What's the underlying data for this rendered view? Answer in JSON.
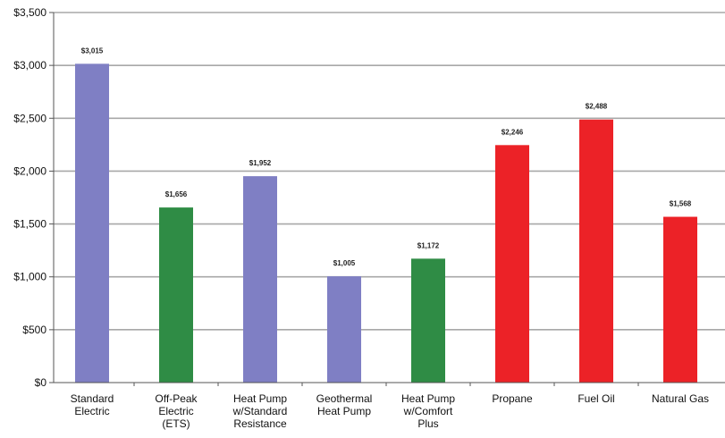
{
  "chart_data": {
    "type": "bar",
    "title": "",
    "xlabel": "",
    "ylabel": "",
    "ylim": [
      0,
      3500
    ],
    "yticks": [
      0,
      500,
      1000,
      1500,
      2000,
      2500,
      3000,
      3500
    ],
    "ytick_labels": [
      "$0",
      "$500",
      "$1,000",
      "$1,500",
      "$2,000",
      "$2,500",
      "$3,000",
      "$3,500"
    ],
    "grid": true,
    "legend": "none",
    "categories": [
      [
        "Standard",
        "Electric"
      ],
      [
        "Off-Peak",
        "Electric",
        "(ETS)"
      ],
      [
        "Heat Pump",
        "w/Standard",
        "Resistance"
      ],
      [
        "Geothermal",
        "Heat Pump"
      ],
      [
        "Heat Pump",
        "w/Comfort",
        "Plus"
      ],
      [
        "Propane"
      ],
      [
        "Fuel Oil"
      ],
      [
        "Natural Gas"
      ]
    ],
    "values": [
      3015,
      1656,
      1952,
      1005,
      1172,
      2246,
      2488,
      1568
    ],
    "value_labels": [
      "$3,015",
      "$1,656",
      "$1,952",
      "$1,005",
      "$1,172",
      "$2,246",
      "$2,488",
      "$1,568"
    ],
    "colors": [
      "#7f7fc4",
      "#2f8c45",
      "#7f7fc4",
      "#7f7fc4",
      "#2f8c45",
      "#ec2227",
      "#ec2227",
      "#ec2227"
    ]
  }
}
